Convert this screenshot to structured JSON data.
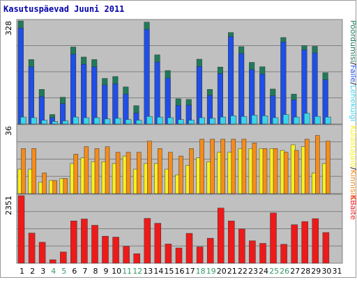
{
  "chart_data": {
    "title": "Kasutuspäevad Juuni 2011",
    "type": "bar",
    "x": [
      "1",
      "2",
      "3",
      "4",
      "5",
      "6",
      "7",
      "8",
      "9",
      "10",
      "11",
      "12",
      "13",
      "14",
      "15",
      "16",
      "17",
      "18",
      "19",
      "20",
      "21",
      "22",
      "23",
      "24",
      "25",
      "26",
      "27",
      "28",
      "29",
      "30",
      "31"
    ],
    "weekend_days": [
      "4",
      "5",
      "11",
      "12",
      "18",
      "19",
      "25",
      "26"
    ],
    "weekday_label_color": "#000000",
    "weekend_label_color": "#339966",
    "panels": [
      {
        "name": "top",
        "max_label": "328",
        "ylim": [
          0,
          328
        ],
        "series": [
          {
            "name": "Pöördumisi",
            "color": "#1e7b5a",
            "values": [
              328,
              205,
              110,
              30,
              85,
              245,
              213,
              205,
              145,
              151,
              118,
              58,
              324,
              220,
              170,
              80,
              78,
              206,
              110,
              181,
              291,
              246,
              196,
              182,
              111,
              275,
              95,
              249,
              247,
              163,
              null
            ]
          },
          {
            "name": "Faile",
            "color": "#1f4fe8",
            "values": [
              305,
              182,
              87,
              20,
              65,
              222,
              190,
              182,
              124,
              128,
              95,
              35,
              301,
              197,
              146,
              59,
              60,
              183,
              91,
              161,
              278,
              224,
              173,
              159,
              90,
              261,
              77,
              236,
              226,
              141,
              null
            ]
          },
          {
            "name": "Lehekülgi",
            "color": "#3ad4ec",
            "values": [
              22,
              20,
              12,
              8,
              10,
              22,
              20,
              20,
              16,
              18,
              14,
              12,
              24,
              22,
              20,
              14,
              12,
              20,
              18,
              22,
              26,
              24,
              28,
              26,
              20,
              30,
              22,
              34,
              24,
              22,
              null
            ]
          }
        ]
      },
      {
        "name": "middle",
        "max_label": "36",
        "ylim": [
          0,
          36
        ],
        "series": [
          {
            "name": "Külastajaid",
            "color": "#f8f11e",
            "values": [
              13,
              13,
              6,
              7,
              8,
              16,
              19,
              17,
              17,
              16,
              20,
              13,
              16,
              16,
              13,
              10,
              15,
              19,
              17,
              22,
              22,
              24,
              24,
              24,
              24,
              23,
              26,
              25,
              11,
              16,
              null
            ]
          },
          {
            "name": "Kinnisid",
            "color": "#f58c1a",
            "values": [
              24,
              24,
              11,
              7,
              8,
              21,
              25,
              24,
              25,
              22,
              22,
              22,
              28,
              24,
              22,
              20,
              24,
              29,
              29,
              29,
              29,
              29,
              27,
              24,
              24,
              22,
              23,
              29,
              31,
              28,
              null
            ]
          }
        ]
      },
      {
        "name": "bottom",
        "max_label": "2351",
        "ylim": [
          0,
          2351
        ],
        "series": [
          {
            "name": "KBaite",
            "color": "#ee1a1a",
            "values": [
              2351,
              1050,
              730,
              120,
              390,
              1470,
              1540,
              1320,
              940,
              910,
              590,
              330,
              1560,
              1390,
              670,
              530,
              1040,
              570,
              870,
              1920,
              1470,
              1190,
              780,
              690,
              1750,
              660,
              1340,
              1450,
              1550,
              1070,
              null
            ]
          }
        ]
      }
    ],
    "right_legend": {
      "top": [
        {
          "text": "Pöördumisi",
          "color": "#1e7b5a"
        },
        {
          "text": "/",
          "color": "#000000"
        },
        {
          "text": "Faile",
          "color": "#1f4fe8"
        },
        {
          "text": "/",
          "color": "#000000"
        },
        {
          "text": "Lehekülgi",
          "color": "#3ad4ec"
        }
      ],
      "middle": [
        {
          "text": "Külastajaid",
          "color": "#f8f11e"
        },
        {
          "text": "/",
          "color": "#000000"
        },
        {
          "text": "Kinnisid",
          "color": "#f58c1a"
        }
      ],
      "bottom": [
        {
          "text": "KBaite",
          "color": "#ee1a1a"
        }
      ]
    },
    "colors": {
      "background": "#ffffff",
      "panel_bg": "#c0c0c0",
      "border": "#999999",
      "grid": "#808080",
      "title": "#0000aa"
    },
    "grid": true
  }
}
